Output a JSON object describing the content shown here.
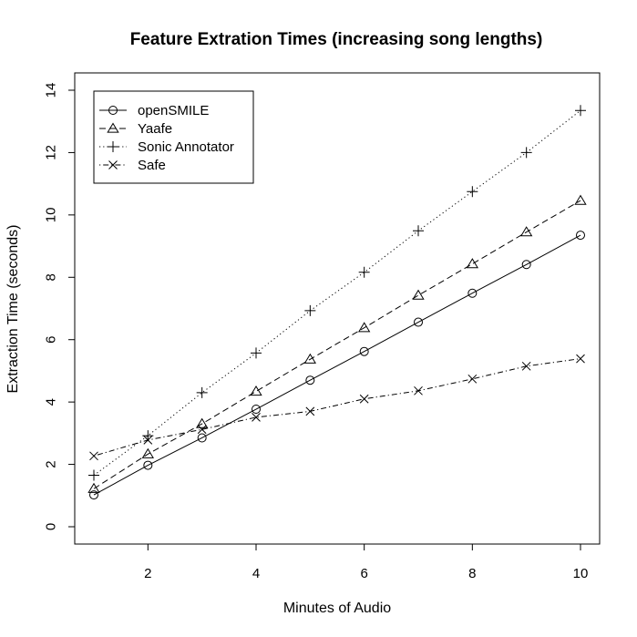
{
  "chart_data": {
    "type": "line",
    "title": "Feature Extration Times (increasing song lengths)",
    "xlabel": "Minutes of Audio",
    "ylabel": "Extraction Time (seconds)",
    "xlim": [
      1,
      10
    ],
    "ylim": [
      0,
      14
    ],
    "x_ticks": [
      "2",
      "4",
      "6",
      "8",
      "10"
    ],
    "y_ticks": [
      "0",
      "2",
      "4",
      "6",
      "8",
      "10",
      "12",
      "14"
    ],
    "x": [
      1,
      2,
      3,
      4,
      5,
      6,
      7,
      8,
      9,
      10
    ],
    "grid": false,
    "legend_position": "top-left",
    "series": [
      {
        "name": "openSMILE",
        "marker": "circle",
        "line_style": "solid",
        "color": "#000000",
        "values": [
          1.02,
          1.97,
          2.85,
          3.77,
          4.7,
          5.62,
          6.56,
          7.49,
          8.41,
          9.35
        ]
      },
      {
        "name": "Yaafe",
        "marker": "triangle",
        "line_style": "dashed",
        "color": "#000000",
        "values": [
          1.22,
          2.33,
          3.3,
          4.34,
          5.37,
          6.38,
          7.42,
          8.43,
          9.45,
          10.46
        ]
      },
      {
        "name": "Sonic Annotator",
        "marker": "plus",
        "line_style": "dotted",
        "color": "#000000",
        "values": [
          1.65,
          2.92,
          4.3,
          5.57,
          6.93,
          8.16,
          9.49,
          10.75,
          12.0,
          13.35
        ]
      },
      {
        "name": "Safe",
        "marker": "cross",
        "line_style": "dotdash",
        "color": "#000000",
        "values": [
          2.27,
          2.78,
          3.12,
          3.51,
          3.7,
          4.1,
          4.36,
          4.74,
          5.15,
          5.39
        ]
      }
    ]
  }
}
